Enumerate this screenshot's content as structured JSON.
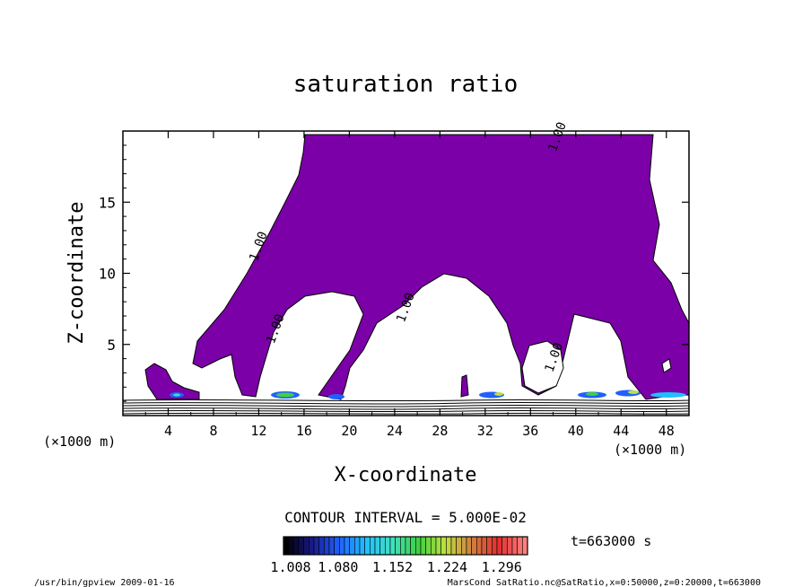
{
  "chart_data": {
    "type": "contour",
    "title": "saturation ratio",
    "xlabel": "X-coordinate",
    "ylabel": "Z-coordinate",
    "x_unit": "(×1000 m)",
    "y_unit": "(×1000 m)",
    "xlim": [
      0,
      50
    ],
    "ylim": [
      0,
      20
    ],
    "x_ticks": [
      4,
      8,
      12,
      16,
      20,
      24,
      28,
      32,
      36,
      40,
      44,
      48
    ],
    "y_ticks": [
      5,
      10,
      15
    ],
    "contour_labels": [
      {
        "text": "1.00",
        "x": 38.7,
        "z": 19.5
      },
      {
        "text": "1.00",
        "x": 12.3,
        "z": 11.8
      },
      {
        "text": "1.00",
        "x": 13.8,
        "z": 6.0
      },
      {
        "text": "1.00",
        "x": 25.3,
        "z": 7.5
      },
      {
        "text": "1.00",
        "x": 38.4,
        "z": 4.0
      }
    ],
    "contour_interval_text": "CONTOUR INTERVAL = 5.000E-02",
    "colorbar": {
      "min": 1.008,
      "max": 1.33,
      "labels": [
        "1.008",
        "1.080",
        "1.152",
        "1.224",
        "1.296"
      ],
      "colors": [
        "#000000",
        "#1a1a8c",
        "#2060ff",
        "#20c0ff",
        "#40e0c0",
        "#40d040",
        "#c0e040",
        "#d08040",
        "#e03030",
        "#ff8080"
      ]
    },
    "time_text": "t=663000 s"
  },
  "footer": {
    "left": "/usr/bin/gpview  2009-01-16",
    "right": "MarsCond_SatRatio.nc@SatRatio,x=0:50000,z=0:20000,t=663000"
  },
  "colors": {
    "supersaturated_fill": "#7b00a8",
    "background": "#ffffff"
  }
}
